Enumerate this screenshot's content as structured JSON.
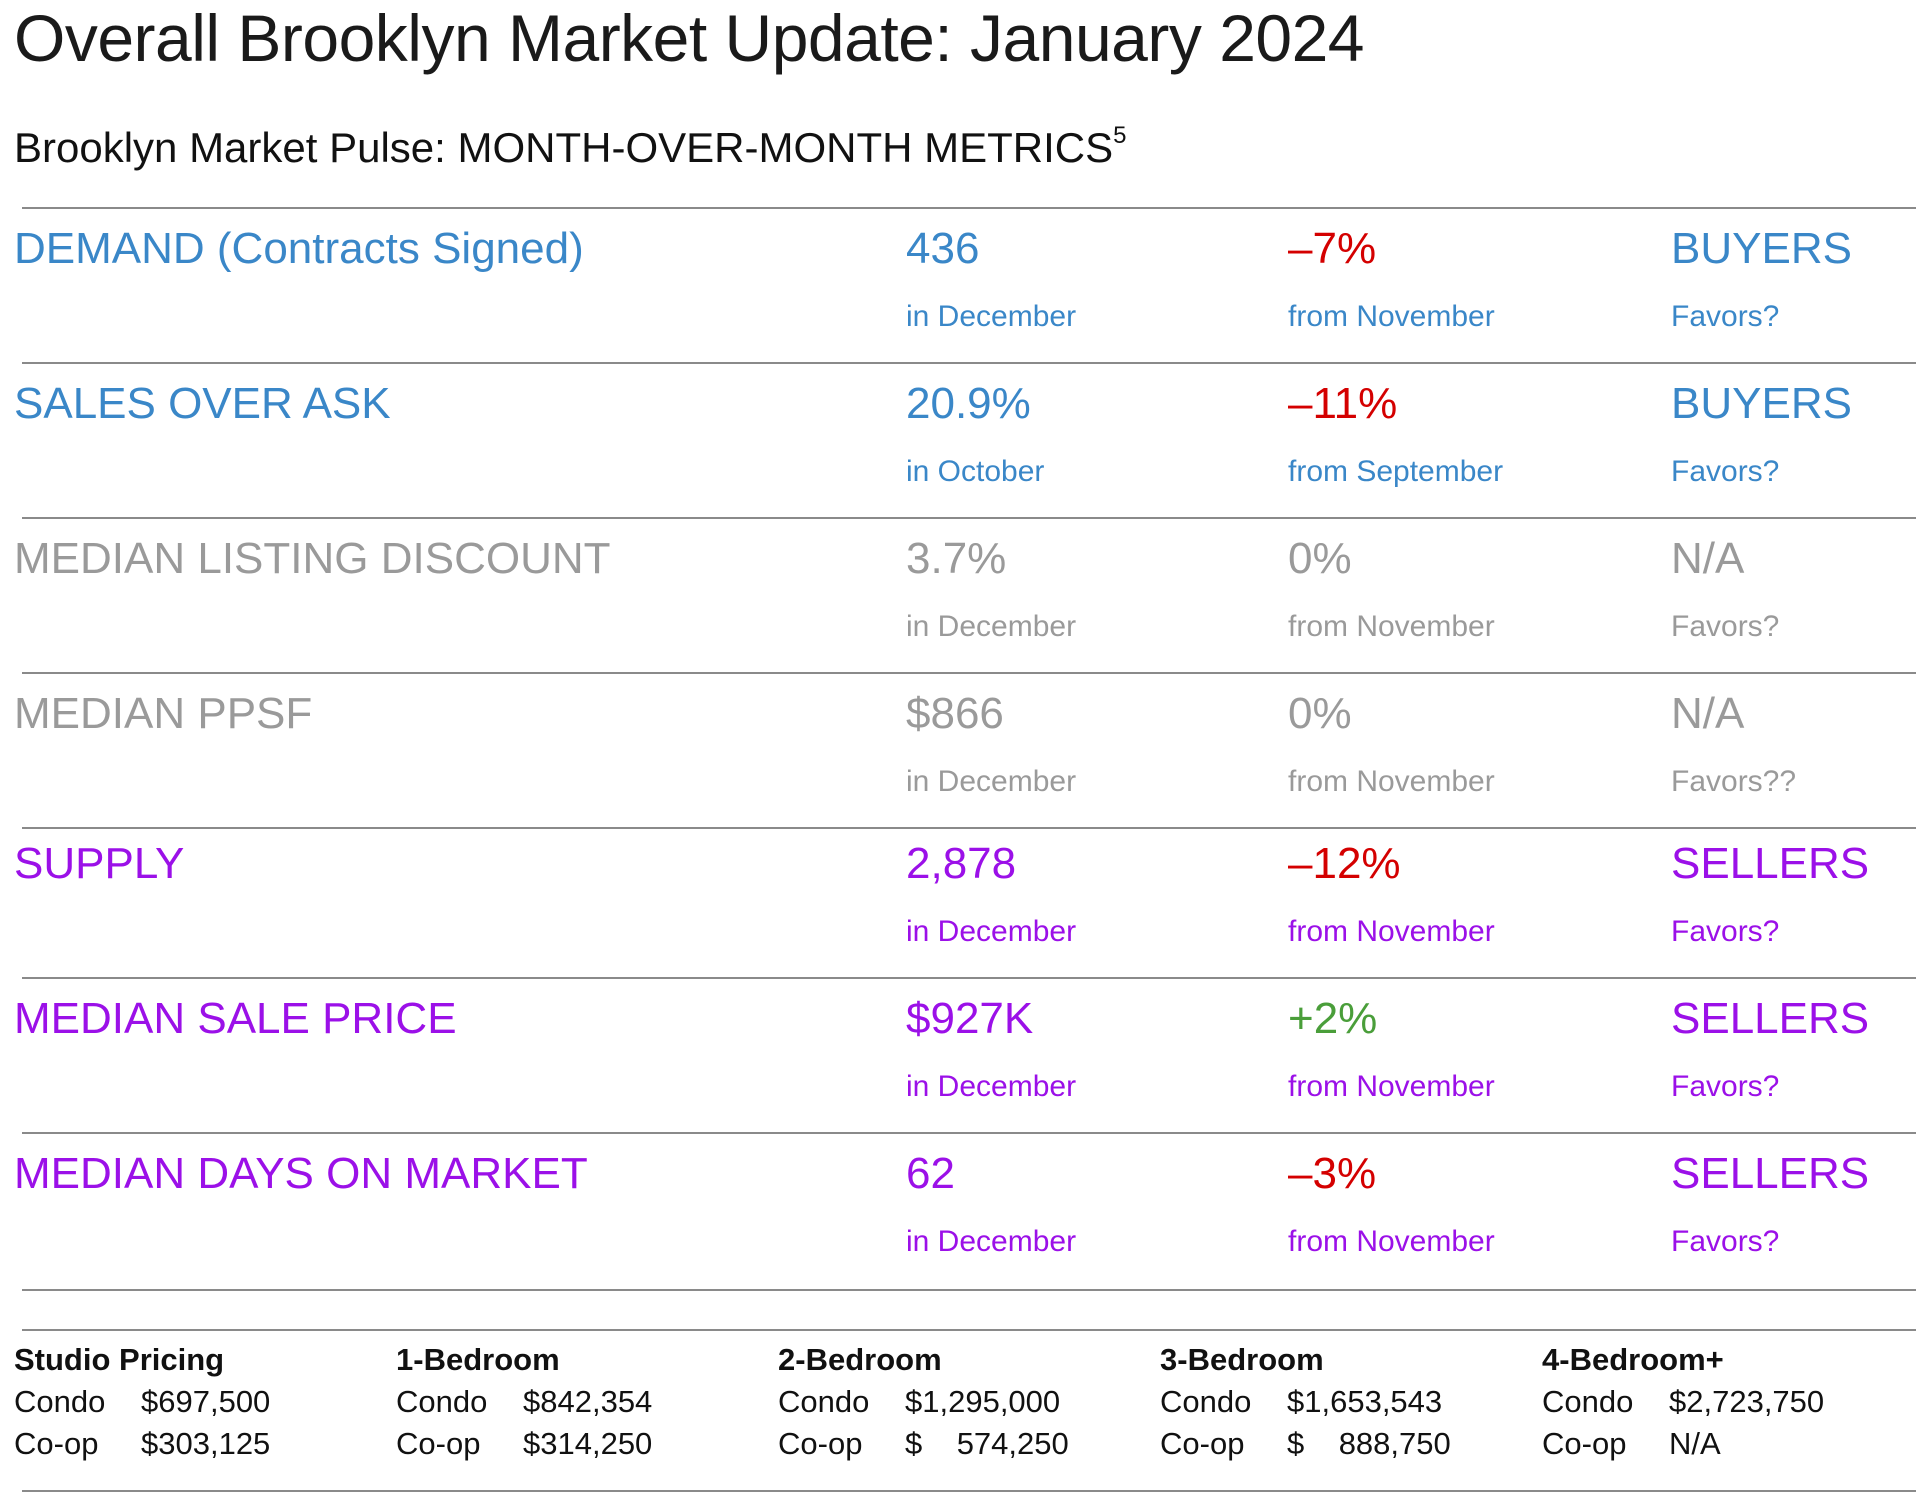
{
  "header": {
    "title": "Overall Brooklyn Market Update: January 2024",
    "subtitle": "Brooklyn Market Pulse: MONTH-OVER-MONTH METRICS",
    "footnote": "5"
  },
  "colors": {
    "blue": "#3a87c8",
    "gray": "#9a9a9a",
    "purple": "#9b10e8",
    "red": "#d40000",
    "green": "#4a9e3a",
    "rule": "#8a8a8a"
  },
  "metrics": [
    {
      "name": "DEMAND (Contracts Signed)",
      "value": "436",
      "value_note": "in December",
      "change": "–7%",
      "change_note": "from November",
      "favors": "BUYERS",
      "favors_note": "Favors?"
    },
    {
      "name": "SALES OVER ASK",
      "value": "20.9%",
      "value_note": "in October",
      "change": "–11%",
      "change_note": "from September",
      "favors": "BUYERS",
      "favors_note": "Favors?"
    },
    {
      "name": "MEDIAN LISTING DISCOUNT",
      "value": "3.7%",
      "value_note": "in December",
      "change": "0%",
      "change_note": "from November",
      "favors": "N/A",
      "favors_note": "Favors?"
    },
    {
      "name": "MEDIAN PPSF",
      "value": "$866",
      "value_note": "in December",
      "change": "0%",
      "change_note": "from November",
      "favors": "N/A",
      "favors_note": "Favors??"
    },
    {
      "name": "SUPPLY",
      "value": "2,878",
      "value_note": "in December",
      "change": "–12%",
      "change_note": "from November",
      "favors": "SELLERS",
      "favors_note": "Favors?"
    },
    {
      "name": "MEDIAN SALE PRICE",
      "value": "$927K",
      "value_note": "in December",
      "change": "+2%",
      "change_note": "from November",
      "favors": "SELLERS",
      "favors_note": "Favors?"
    },
    {
      "name": "MEDIAN DAYS ON MARKET",
      "value": "62",
      "value_note": "in December",
      "change": "–3%",
      "change_note": "from November",
      "favors": "SELLERS",
      "favors_note": "Favors?"
    }
  ],
  "pricing": [
    {
      "heading": "Studio Pricing",
      "condo_label": "Condo",
      "condo_value": "$697,500",
      "coop_label": "Co-op",
      "coop_value": "$303,125"
    },
    {
      "heading": "1-Bedroom",
      "condo_label": "Condo",
      "condo_value": "$842,354",
      "coop_label": "Co-op",
      "coop_value": "$314,250"
    },
    {
      "heading": "2-Bedroom",
      "condo_label": "Condo",
      "condo_value": "$1,295,000",
      "coop_label": "Co-op",
      "coop_value": "$    574,250"
    },
    {
      "heading": "3-Bedroom",
      "condo_label": "Condo",
      "condo_value": "$1,653,543",
      "coop_label": "Co-op",
      "coop_value": "$    888,750"
    },
    {
      "heading": "4-Bedroom+",
      "condo_label": "Condo",
      "condo_value": "$2,723,750",
      "coop_label": "Co-op",
      "coop_value": "N/A"
    }
  ]
}
